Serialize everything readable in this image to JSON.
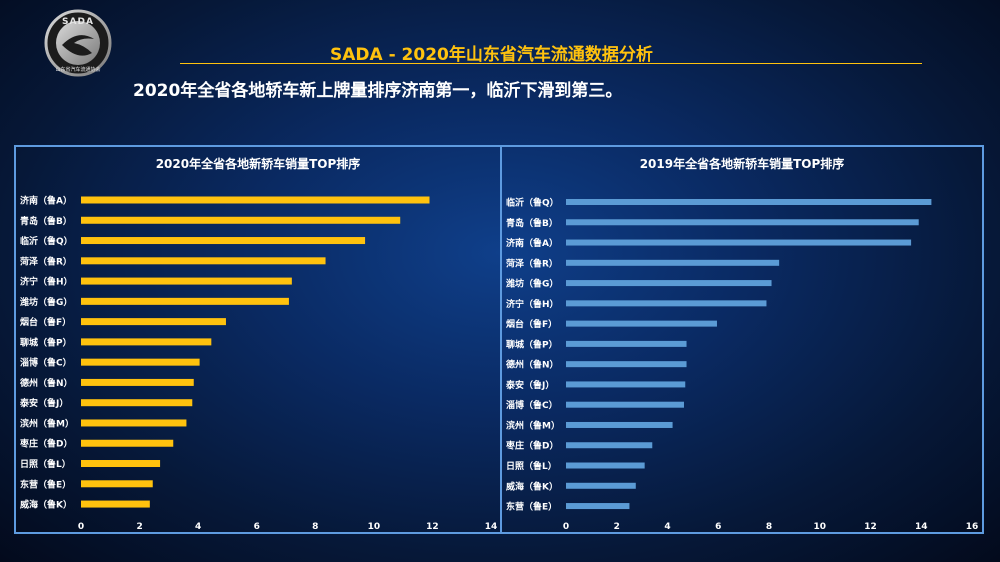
{
  "logo": {
    "text_top": "SADA",
    "text_bottom": "山东省汽车流通协会"
  },
  "header": {
    "title": "SADA -  2020年山东省汽车流通数据分析"
  },
  "headline": "2020年全省各地轿车新上牌量排序济南第一，临沂下滑到第三。",
  "colors": {
    "bar_2020": "#ffc20e",
    "bar_2019": "#5b9bd5",
    "accent": "#ffc20e",
    "panel_border": "#5e9be0"
  },
  "chart_data": [
    {
      "type": "bar",
      "orientation": "horizontal",
      "title": "2020年全省各地新轿车销量TOP排序",
      "categories": [
        "济南（鲁A）",
        "青岛（鲁B）",
        "临沂（鲁Q）",
        "菏泽（鲁R）",
        "济宁（鲁H）",
        "潍坊（鲁G）",
        "烟台（鲁F）",
        "聊城（鲁P）",
        "淄博（鲁C）",
        "德州（鲁N）",
        "泰安（鲁J）",
        "滨州（鲁M）",
        "枣庄（鲁D）",
        "日照（鲁L）",
        "东营（鲁E）",
        "威海（鲁K）"
      ],
      "values": [
        11.9,
        10.9,
        9.7,
        8.35,
        7.2,
        7.1,
        4.95,
        4.45,
        4.05,
        3.85,
        3.8,
        3.6,
        3.15,
        2.7,
        2.45,
        2.35
      ],
      "xlim": [
        0,
        14
      ],
      "ticks": [
        "0",
        "2",
        "4",
        "6",
        "8",
        "10",
        "12",
        "14"
      ],
      "grid": false
    },
    {
      "type": "bar",
      "orientation": "horizontal",
      "title": "2019年全省各地新轿车销量TOP排序",
      "categories": [
        "临沂（鲁Q）",
        "青岛（鲁B）",
        "济南（鲁A）",
        "菏泽（鲁R）",
        "潍坊（鲁G）",
        "济宁（鲁H）",
        "烟台（鲁F）",
        "聊城（鲁P）",
        "德州（鲁N）",
        "泰安（鲁J）",
        "淄博（鲁C）",
        "滨州（鲁M）",
        "枣庄（鲁D）",
        "日照（鲁L）",
        "威海（鲁K）",
        "东营（鲁E）"
      ],
      "values": [
        14.4,
        13.9,
        13.6,
        8.4,
        8.1,
        7.9,
        5.95,
        4.75,
        4.75,
        4.7,
        4.65,
        4.2,
        3.4,
        3.1,
        2.75,
        2.5
      ],
      "xlim": [
        0,
        16
      ],
      "ticks": [
        "0",
        "2",
        "4",
        "6",
        "8",
        "10",
        "12",
        "14",
        "16"
      ],
      "grid": false
    }
  ]
}
